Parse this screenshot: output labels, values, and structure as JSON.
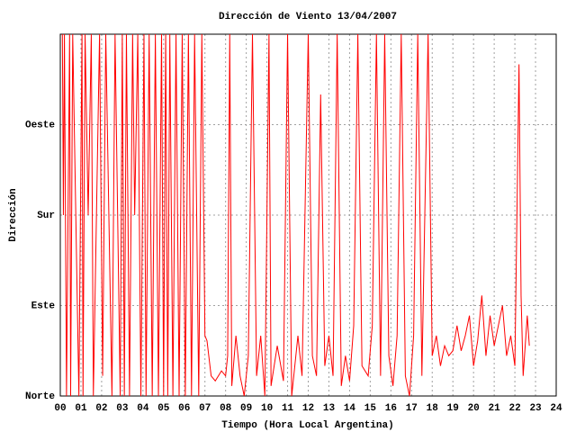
{
  "chart_data": {
    "type": "line",
    "title": "Dirección de Viento 13/04/2007",
    "x_label": "Tiempo (Hora Local Argentina)",
    "y_label": "Dirección",
    "color": "#ff0000",
    "grid": true,
    "xlim": [
      0,
      24
    ],
    "ylim": [
      0,
      360
    ],
    "xticks": [
      {
        "value": 0,
        "label": "00"
      },
      {
        "value": 1,
        "label": "01"
      },
      {
        "value": 2,
        "label": "02"
      },
      {
        "value": 3,
        "label": "03"
      },
      {
        "value": 4,
        "label": "04"
      },
      {
        "value": 5,
        "label": "05"
      },
      {
        "value": 6,
        "label": "06"
      },
      {
        "value": 7,
        "label": "07"
      },
      {
        "value": 8,
        "label": "08"
      },
      {
        "value": 9,
        "label": "09"
      },
      10,
      11,
      12,
      13,
      14,
      15,
      16,
      17,
      18,
      19,
      20,
      21,
      22,
      23,
      24
    ],
    "yticks": [
      {
        "value": 0,
        "label": "Norte"
      },
      {
        "value": 90,
        "label": "Este"
      },
      {
        "value": 180,
        "label": "Sur"
      },
      {
        "value": 270,
        "label": "Oeste"
      }
    ],
    "x": [
      0.1,
      0.15,
      0.2,
      0.3,
      0.45,
      0.5,
      0.6,
      0.9,
      1.05,
      1.1,
      1.2,
      1.35,
      1.5,
      1.6,
      1.9,
      2.05,
      2.2,
      2.5,
      2.65,
      2.9,
      3,
      3.1,
      3.2,
      3.35,
      3.5,
      3.6,
      3.75,
      3.9,
      4.05,
      4.15,
      4.3,
      4.45,
      4.6,
      4.75,
      4.9,
      5,
      5.1,
      5.2,
      5.3,
      5.45,
      5.6,
      5.75,
      5.9,
      6.05,
      6.2,
      6.35,
      6.5,
      6.7,
      6.85,
      7,
      7.1,
      7.3,
      7.5,
      7.8,
      8,
      8.1,
      8.2,
      8.3,
      8.5,
      8.7,
      8.9,
      9.1,
      9.3,
      9.5,
      9.7,
      9.9,
      10.1,
      10.2,
      10.5,
      10.8,
      11,
      11.2,
      11.5,
      11.7,
      12,
      12.2,
      12.4,
      12.6,
      12.8,
      13,
      13.2,
      13.4,
      13.6,
      13.8,
      14,
      14.2,
      14.4,
      14.6,
      14.9,
      15.1,
      15.3,
      15.5,
      15.7,
      15.9,
      16.1,
      16.3,
      16.5,
      16.7,
      16.9,
      17.1,
      17.3,
      17.5,
      17.8,
      18,
      18.2,
      18.4,
      18.6,
      18.8,
      19,
      19.2,
      19.4,
      19.6,
      19.8,
      20,
      20.2,
      20.4,
      20.6,
      20.8,
      21,
      21.2,
      21.4,
      21.6,
      21.8,
      22,
      22.2,
      22.3,
      22.4,
      22.6,
      22.7
    ],
    "values": [
      360,
      180,
      360,
      0,
      360,
      0,
      360,
      0,
      360,
      0,
      360,
      180,
      360,
      0,
      360,
      20,
      360,
      0,
      360,
      0,
      360,
      0,
      360,
      0,
      360,
      180,
      360,
      0,
      360,
      0,
      360,
      0,
      360,
      0,
      360,
      0,
      360,
      0,
      360,
      0,
      360,
      0,
      360,
      0,
      360,
      0,
      360,
      0,
      360,
      60,
      55,
      20,
      15,
      25,
      20,
      40,
      360,
      10,
      60,
      20,
      0,
      40,
      360,
      20,
      60,
      0,
      360,
      10,
      50,
      15,
      360,
      0,
      60,
      20,
      360,
      40,
      20,
      300,
      30,
      60,
      20,
      360,
      10,
      40,
      15,
      70,
      360,
      30,
      20,
      70,
      360,
      20,
      360,
      40,
      10,
      60,
      360,
      20,
      0,
      60,
      360,
      20,
      360,
      40,
      60,
      30,
      50,
      40,
      45,
      70,
      45,
      60,
      80,
      30,
      55,
      100,
      40,
      80,
      50,
      70,
      90,
      40,
      60,
      30,
      330,
      100,
      20,
      80,
      50
    ]
  }
}
